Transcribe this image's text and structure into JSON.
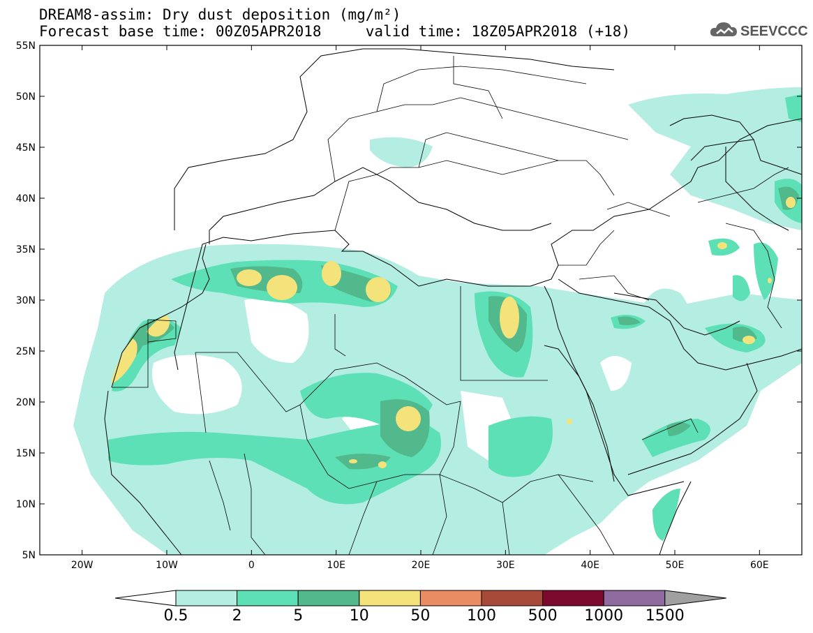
{
  "header": {
    "title_line1": "DREAM8-assim: Dry dust deposition (mg/m²)",
    "title_line2": "Forecast base time: 00Z05APR2018     valid time: 18Z05APR2018 (+18)"
  },
  "logo": {
    "text": "SEEVCCC",
    "icon": "cloud-icon"
  },
  "map": {
    "lat_ticks": [
      "55N",
      "50N",
      "45N",
      "40N",
      "35N",
      "30N",
      "25N",
      "20N",
      "15N",
      "10N",
      "5N"
    ],
    "lon_ticks": [
      "20W",
      "10W",
      "0",
      "10E",
      "20E",
      "30E",
      "40E",
      "50E",
      "60E"
    ],
    "lon_range": [
      -25,
      65
    ],
    "lat_range": [
      5,
      55
    ]
  },
  "legend": {
    "labels": [
      "0.5",
      "2",
      "5",
      "10",
      "50",
      "100",
      "500",
      "1000",
      "1500"
    ],
    "colors": [
      "#ffffff",
      "#b4ede2",
      "#5ee0b6",
      "#52b98d",
      "#f3e37a",
      "#e98c64",
      "#a84a3a",
      "#7c0a2e",
      "#8f6a9e",
      "#a0a0a0"
    ]
  }
}
